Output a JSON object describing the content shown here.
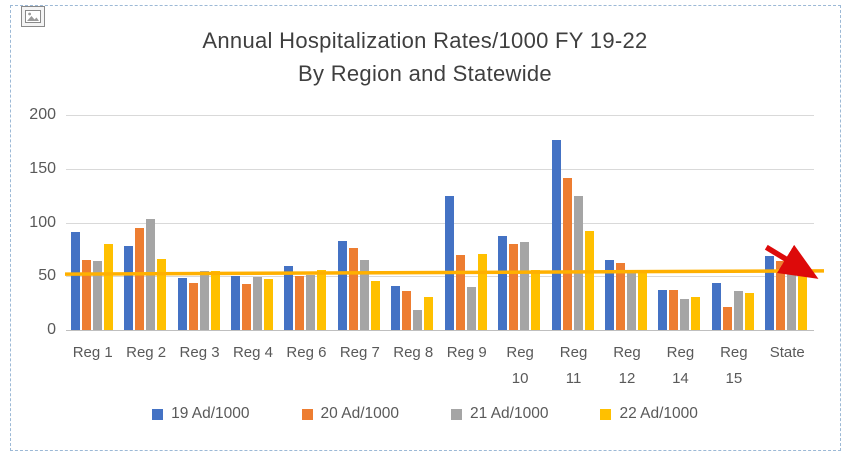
{
  "frame": {
    "corner_icon": "image-placeholder-icon"
  },
  "chart_data": {
    "type": "bar",
    "title": "Annual Hospitalization Rates/1000 FY 19-22",
    "subtitle": "By Region and Statewide",
    "categories": [
      "Reg 1",
      "Reg 2",
      "Reg 3",
      "Reg 4",
      "Reg 6",
      "Reg 7",
      "Reg 8",
      "Reg 9",
      "Reg 10",
      "Reg 11",
      "Reg 12",
      "Reg 14",
      "Reg 15",
      "State"
    ],
    "category_label_lines": [
      [
        "Reg 1"
      ],
      [
        "Reg 2"
      ],
      [
        "Reg 3"
      ],
      [
        "Reg 4"
      ],
      [
        "Reg 6"
      ],
      [
        "Reg 7"
      ],
      [
        "Reg 8"
      ],
      [
        "Reg 9"
      ],
      [
        "Reg",
        "10"
      ],
      [
        "Reg",
        "11"
      ],
      [
        "Reg",
        "12"
      ],
      [
        "Reg",
        "14"
      ],
      [
        "Reg",
        "15"
      ],
      [
        "State"
      ]
    ],
    "series": [
      {
        "name": "19 Ad/1000",
        "color": "#4472C4",
        "values": [
          91,
          78,
          48,
          50,
          60,
          83,
          41,
          125,
          87,
          177,
          65,
          37,
          44,
          69
        ]
      },
      {
        "name": "20 Ad/1000",
        "color": "#ED7D31",
        "values": [
          65,
          95,
          44,
          43,
          50,
          76,
          36,
          70,
          80,
          141,
          62,
          37,
          21,
          64
        ]
      },
      {
        "name": "21 Ad/1000",
        "color": "#A5A5A5",
        "values": [
          64,
          103,
          55,
          49,
          51,
          65,
          19,
          40,
          82,
          125,
          53,
          29,
          36,
          59
        ]
      },
      {
        "name": "22 Ad/1000",
        "color": "#FFC000",
        "values": [
          80,
          66,
          55,
          47,
          56,
          46,
          31,
          71,
          56,
          92,
          54,
          31,
          34,
          54
        ]
      }
    ],
    "xlabel": "",
    "ylabel": "",
    "ylim": [
      0,
      200
    ],
    "yticks": [
      0,
      50,
      100,
      150,
      200
    ],
    "grid": true,
    "legend_position": "bottom",
    "reference_line": {
      "color": "#FFB000",
      "start_value": 52,
      "end_value": 55
    },
    "annotation": {
      "shape": "down-right-arrow",
      "color": "#DD0A0A",
      "over_category": "State",
      "from_value": 77,
      "to_value": 55
    }
  }
}
